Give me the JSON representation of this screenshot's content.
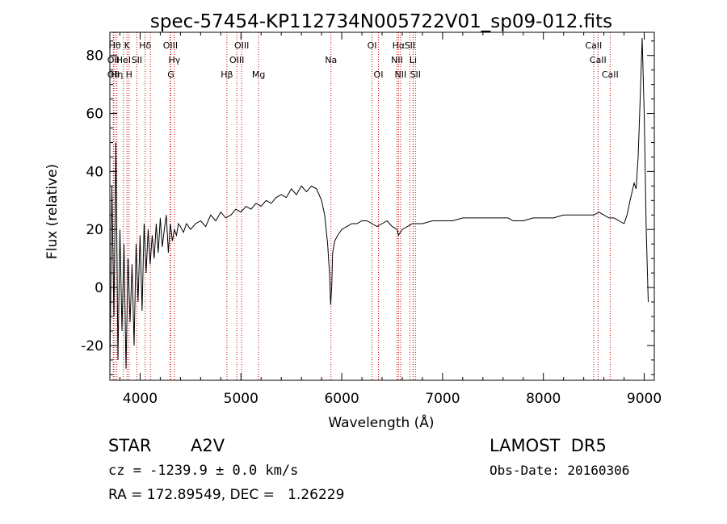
{
  "chart_data": {
    "type": "line",
    "title": "spec-57454-KP112734N005722V01_sp09-012.fits",
    "xlabel": "Wavelength (Å)",
    "ylabel": "Flux (relative)",
    "xlim": [
      3700,
      9100
    ],
    "ylim": [
      -32,
      88
    ],
    "xticks": [
      4000,
      5000,
      6000,
      7000,
      8000,
      9000
    ],
    "yticks": [
      -20,
      0,
      20,
      40,
      60,
      80
    ],
    "line_color": "#000000",
    "marker_color": "#cc0000",
    "series": [
      {
        "x": [
          3700,
          3720,
          3740,
          3760,
          3780,
          3800,
          3820,
          3840,
          3860,
          3880,
          3900,
          3920,
          3940,
          3960,
          3980,
          4000,
          4020,
          4040,
          4060,
          4080,
          4100,
          4120,
          4140,
          4160,
          4180,
          4200,
          4220,
          4240,
          4260,
          4280,
          4300,
          4320,
          4340,
          4360,
          4380,
          4400,
          4430,
          4460,
          4500,
          4550,
          4600,
          4650,
          4700,
          4750,
          4800,
          4850,
          4900,
          4950,
          5000,
          5050,
          5100,
          5150,
          5200,
          5250,
          5300,
          5350,
          5400,
          5450,
          5500,
          5550,
          5600,
          5650,
          5700,
          5750,
          5800,
          5830,
          5860,
          5880,
          5890,
          5900,
          5910,
          5930,
          5960,
          6000,
          6050,
          6100,
          6150,
          6200,
          6250,
          6300,
          6350,
          6400,
          6450,
          6500,
          6550,
          6563,
          6600,
          6650,
          6700,
          6750,
          6800,
          6900,
          7000,
          7100,
          7200,
          7300,
          7400,
          7500,
          7600,
          7650,
          7700,
          7800,
          7900,
          8000,
          8100,
          8200,
          8300,
          8400,
          8500,
          8550,
          8600,
          8650,
          8700,
          8750,
          8800,
          8830,
          8860,
          8900,
          8920,
          8940,
          8960,
          8980,
          9000,
          9020,
          9040
        ],
        "y": [
          -30,
          35,
          -10,
          50,
          -25,
          20,
          -15,
          15,
          -28,
          10,
          -12,
          8,
          -20,
          15,
          -5,
          18,
          -8,
          22,
          5,
          20,
          8,
          18,
          10,
          22,
          12,
          24,
          14,
          20,
          25,
          12,
          22,
          16,
          20,
          18,
          22,
          21,
          19,
          22,
          20,
          22,
          23,
          21,
          25,
          23,
          26,
          24,
          25,
          27,
          26,
          28,
          27,
          29,
          28,
          30,
          29,
          31,
          32,
          31,
          34,
          32,
          35,
          33,
          35,
          34,
          30,
          25,
          15,
          4,
          -6,
          0,
          12,
          16,
          18,
          20,
          21,
          22,
          22,
          23,
          23,
          22,
          21,
          22,
          23,
          21,
          20,
          18,
          20,
          21,
          22,
          22,
          22,
          23,
          23,
          23,
          24,
          24,
          24,
          24,
          24,
          24,
          23,
          23,
          24,
          24,
          24,
          25,
          25,
          25,
          25,
          26,
          25,
          24,
          24,
          23,
          22,
          25,
          30,
          36,
          34,
          45,
          65,
          86,
          60,
          20,
          -5
        ]
      }
    ],
    "line_markers": [
      {
        "wl": 3750,
        "label": "Hθ",
        "row": 0
      },
      {
        "wl": 3735,
        "label": "OII",
        "row": 1
      },
      {
        "wl": 3735,
        "label": "OII",
        "row": 2
      },
      {
        "wl": 3770,
        "label": "Hη",
        "row": 2
      },
      {
        "wl": 3835,
        "label": "HeI",
        "row": 1
      },
      {
        "wl": 3870,
        "label": "K",
        "row": 0
      },
      {
        "wl": 3890,
        "label": "H",
        "row": 2
      },
      {
        "wl": 3968,
        "label": "SII",
        "row": 1
      },
      {
        "wl": 4050,
        "label": "Hδ",
        "row": 0
      },
      {
        "wl": 4102,
        "label": "",
        "row": 0
      },
      {
        "wl": 4300,
        "label": "OIII",
        "row": 0
      },
      {
        "wl": 4340,
        "label": "Hγ",
        "row": 1
      },
      {
        "wl": 4305,
        "label": "G",
        "row": 2
      },
      {
        "wl": 4861,
        "label": "Hβ",
        "row": 2
      },
      {
        "wl": 4959,
        "label": "OIII",
        "row": 1
      },
      {
        "wl": 5007,
        "label": "OIII",
        "row": 0
      },
      {
        "wl": 5175,
        "label": "Mg",
        "row": 2
      },
      {
        "wl": 5893,
        "label": "Na",
        "row": 1
      },
      {
        "wl": 6300,
        "label": "OI",
        "row": 0
      },
      {
        "wl": 6364,
        "label": "OI",
        "row": 2
      },
      {
        "wl": 6548,
        "label": "NII",
        "row": 1
      },
      {
        "wl": 6563,
        "label": "Hα",
        "row": 0
      },
      {
        "wl": 6583,
        "label": "NII",
        "row": 2
      },
      {
        "wl": 6676,
        "label": "SII",
        "row": 0
      },
      {
        "wl": 6708,
        "label": "Li",
        "row": 1
      },
      {
        "wl": 6731,
        "label": "SII",
        "row": 2
      },
      {
        "wl": 8498,
        "label": "CaII",
        "row": 0
      },
      {
        "wl": 8542,
        "label": "CaII",
        "row": 1
      },
      {
        "wl": 8662,
        "label": "CaII",
        "row": 2
      }
    ]
  },
  "info": {
    "object_class": "STAR",
    "subclass": "A2V",
    "survey": "LAMOST  DR5",
    "velocity": "cz = -1239.9 ± 0.0 km/s",
    "obs_date": "Obs-Date: 20160306",
    "coords": "RA = 172.89549, DEC =   1.26229"
  }
}
